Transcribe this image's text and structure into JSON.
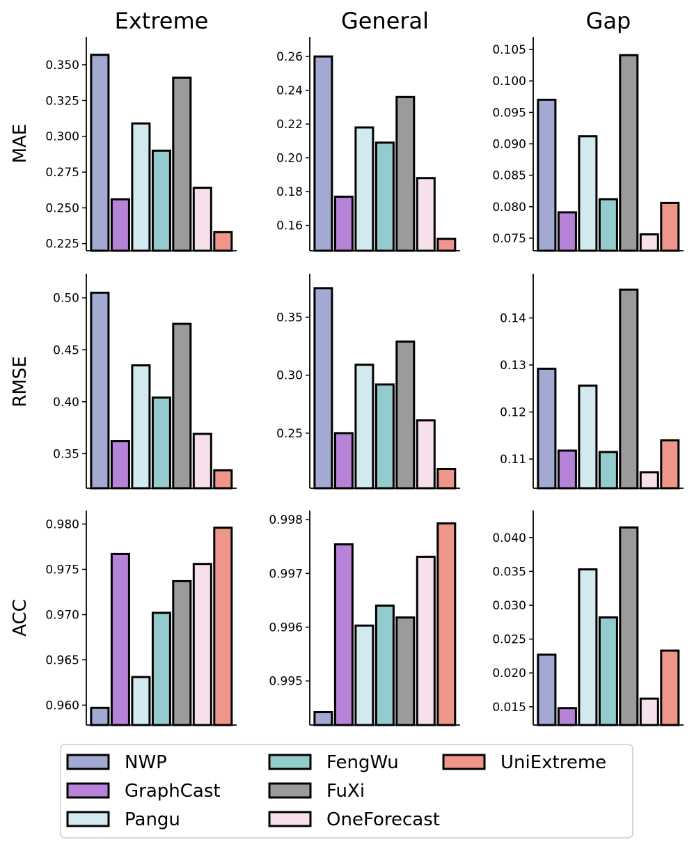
{
  "models": [
    "NWP",
    "GraphCast",
    "Pangu",
    "FengWu",
    "FuXi",
    "OneForecast",
    "UniExtreme"
  ],
  "colors": {
    "NWP": "#a2aad3",
    "GraphCast": "#b683d8",
    "Pangu": "#d2e9f0",
    "FengWu": "#94cbcc",
    "FuXi": "#9b9b9b",
    "OneForecast": "#f6e0ec",
    "UniExtreme": "#ef968a"
  },
  "columns": [
    "Extreme",
    "General",
    "Gap"
  ],
  "rows": [
    "MAE",
    "RMSE",
    "ACC"
  ],
  "legend": {
    "items": [
      "NWP",
      "GraphCast",
      "Pangu",
      "FengWu",
      "FuXi",
      "OneForecast",
      "UniExtreme"
    ],
    "columns": 3,
    "placement": "bottom-center"
  },
  "chart_data": [
    {
      "type": "bar",
      "row": "MAE",
      "column": "Extreme",
      "title": "Extreme",
      "ylabel": "MAE",
      "categories": [
        "NWP",
        "GraphCast",
        "Pangu",
        "FengWu",
        "FuXi",
        "OneForecast",
        "UniExtreme"
      ],
      "values": [
        0.357,
        0.256,
        0.309,
        0.29,
        0.341,
        0.264,
        0.233
      ],
      "ylim": [
        0.22,
        0.3695
      ],
      "yticks": [
        0.225,
        0.25,
        0.275,
        0.3,
        0.325,
        0.35
      ],
      "ytick_labels": [
        "0.225",
        "0.250",
        "0.275",
        "0.300",
        "0.325",
        "0.350"
      ],
      "grid": false
    },
    {
      "type": "bar",
      "row": "MAE",
      "column": "General",
      "title": "General",
      "ylabel": "",
      "categories": [
        "NWP",
        "GraphCast",
        "Pangu",
        "FengWu",
        "FuXi",
        "OneForecast",
        "UniExtreme"
      ],
      "values": [
        0.26,
        0.177,
        0.218,
        0.209,
        0.236,
        0.188,
        0.152
      ],
      "ylim": [
        0.145,
        0.2716
      ],
      "yticks": [
        0.16,
        0.18,
        0.2,
        0.22,
        0.24,
        0.26
      ],
      "ytick_labels": [
        "0.16",
        "0.18",
        "0.20",
        "0.22",
        "0.24",
        "0.26"
      ],
      "grid": false
    },
    {
      "type": "bar",
      "row": "MAE",
      "column": "Gap",
      "title": "Gap",
      "ylabel": "",
      "categories": [
        "NWP",
        "GraphCast",
        "Pangu",
        "FengWu",
        "FuXi",
        "OneForecast",
        "UniExtreme"
      ],
      "values": [
        0.097,
        0.0791,
        0.0912,
        0.0812,
        0.1041,
        0.0756,
        0.0806
      ],
      "ylim": [
        0.073,
        0.107
      ],
      "yticks": [
        0.075,
        0.08,
        0.085,
        0.09,
        0.095,
        0.1,
        0.105
      ],
      "ytick_labels": [
        "0.075",
        "0.080",
        "0.085",
        "0.090",
        "0.095",
        "0.100",
        "0.105"
      ],
      "grid": false
    },
    {
      "type": "bar",
      "row": "RMSE",
      "column": "Extreme",
      "title": "",
      "ylabel": "RMSE",
      "categories": [
        "NWP",
        "GraphCast",
        "Pangu",
        "FengWu",
        "FuXi",
        "OneForecast",
        "UniExtreme"
      ],
      "values": [
        0.505,
        0.362,
        0.435,
        0.404,
        0.475,
        0.369,
        0.334
      ],
      "ylim": [
        0.3167,
        0.5233
      ],
      "yticks": [
        0.35,
        0.4,
        0.45,
        0.5
      ],
      "ytick_labels": [
        "0.35",
        "0.40",
        "0.45",
        "0.50"
      ],
      "grid": false
    },
    {
      "type": "bar",
      "row": "RMSE",
      "column": "General",
      "title": "",
      "ylabel": "",
      "categories": [
        "NWP",
        "GraphCast",
        "Pangu",
        "FengWu",
        "FuXi",
        "OneForecast",
        "UniExtreme"
      ],
      "values": [
        0.375,
        0.25,
        0.309,
        0.292,
        0.329,
        0.261,
        0.219
      ],
      "ylim": [
        0.2025,
        0.3875
      ],
      "yticks": [
        0.25,
        0.3,
        0.35
      ],
      "ytick_labels": [
        "0.25",
        "0.30",
        "0.35"
      ],
      "grid": false
    },
    {
      "type": "bar",
      "row": "RMSE",
      "column": "Gap",
      "title": "",
      "ylabel": "",
      "categories": [
        "NWP",
        "GraphCast",
        "Pangu",
        "FengWu",
        "FuXi",
        "OneForecast",
        "UniExtreme"
      ],
      "values": [
        0.1292,
        0.1118,
        0.1256,
        0.1115,
        0.146,
        0.1072,
        0.114
      ],
      "ylim": [
        0.1038,
        0.1494
      ],
      "yticks": [
        0.11,
        0.12,
        0.13,
        0.14
      ],
      "ytick_labels": [
        "0.11",
        "0.12",
        "0.13",
        "0.14"
      ],
      "grid": false
    },
    {
      "type": "bar",
      "row": "ACC",
      "column": "Extreme",
      "title": "",
      "ylabel": "ACC",
      "categories": [
        "NWP",
        "GraphCast",
        "Pangu",
        "FengWu",
        "FuXi",
        "OneForecast",
        "UniExtreme"
      ],
      "values": [
        0.9597,
        0.9767,
        0.9631,
        0.9702,
        0.9737,
        0.9756,
        0.9796
      ],
      "ylim": [
        0.9578,
        0.9815
      ],
      "yticks": [
        0.96,
        0.965,
        0.97,
        0.975,
        0.98
      ],
      "ytick_labels": [
        "0.960",
        "0.965",
        "0.970",
        "0.975",
        "0.980"
      ],
      "grid": false
    },
    {
      "type": "bar",
      "row": "ACC",
      "column": "General",
      "title": "",
      "ylabel": "",
      "categories": [
        "NWP",
        "GraphCast",
        "Pangu",
        "FengWu",
        "FuXi",
        "OneForecast",
        "UniExtreme"
      ],
      "values": [
        0.99442,
        0.99754,
        0.99603,
        0.9964,
        0.99618,
        0.99731,
        0.99793
      ],
      "ylim": [
        0.99418,
        0.99817
      ],
      "yticks": [
        0.995,
        0.996,
        0.997,
        0.998
      ],
      "ytick_labels": [
        "0.995",
        "0.996",
        "0.997",
        "0.998"
      ],
      "grid": false
    },
    {
      "type": "bar",
      "row": "ACC",
      "column": "Gap",
      "title": "",
      "ylabel": "",
      "categories": [
        "NWP",
        "GraphCast",
        "Pangu",
        "FengWu",
        "FuXi",
        "OneForecast",
        "UniExtreme"
      ],
      "values": [
        0.0227,
        0.0148,
        0.0353,
        0.0282,
        0.0415,
        0.0162,
        0.0233
      ],
      "ylim": [
        0.0123,
        0.044
      ],
      "yticks": [
        0.015,
        0.02,
        0.025,
        0.03,
        0.035,
        0.04
      ],
      "ytick_labels": [
        "0.015",
        "0.020",
        "0.025",
        "0.030",
        "0.035",
        "0.040"
      ],
      "grid": false
    }
  ]
}
